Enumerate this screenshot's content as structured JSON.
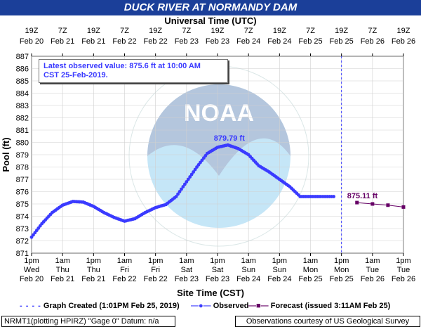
{
  "title": "DUCK RIVER AT NORMANDY DAM",
  "top_axis_title": "Universal Time (UTC)",
  "bottom_axis_title": "Site Time (CST)",
  "y_axis_title": "Pool (ft)",
  "latest_observed": {
    "line1": "Latest observed value: 875.6 ft at 10:00 AM",
    "line2": "CST 25-Feb-2019."
  },
  "legend": {
    "graph_created": "Graph Created (1:01PM Feb 25, 2019)",
    "observed": "Observed",
    "forecast": "Forecast (issued 3:11AM Feb 25)"
  },
  "footer": {
    "left": "NRMT1(plotting HPIRZ) \"Gage 0\" Datum: n/a",
    "right": "Observations courtesy of US Geological Survey"
  },
  "colors": {
    "title_bar": "#1b3f99",
    "observed": "#3a3aff",
    "forecast": "#660066",
    "graph_created_line": "#3a3aff",
    "grid": "#d0d0d0"
  },
  "watermark": "NOAA seal (NATIONAL OCEANIC AND ATMOSPHERIC ADMINISTRATION, U.S. DEPARTMENT OF COMMERCE)",
  "chart_data": {
    "type": "line",
    "title": "DUCK RIVER AT NORMANDY DAM",
    "xlabel": "Site Time (CST)",
    "ylabel": "Pool (ft)",
    "ylim": [
      871,
      887
    ],
    "xlim": [
      "Feb 20 1pm",
      "Feb 26 1pm"
    ],
    "x_unit": "hours CST",
    "y_ticks": [
      871,
      872,
      873,
      874,
      875,
      876,
      877,
      878,
      879,
      880,
      881,
      882,
      883,
      884,
      885,
      886,
      887
    ],
    "bottom_ticks": [
      {
        "time": "1pm",
        "day": "Wed",
        "date": "Feb 20"
      },
      {
        "time": "1am",
        "day": "Thu",
        "date": "Feb 21"
      },
      {
        "time": "1pm",
        "day": "Thu",
        "date": "Feb 21"
      },
      {
        "time": "1am",
        "day": "Fri",
        "date": "Feb 22"
      },
      {
        "time": "1pm",
        "day": "Fri",
        "date": "Feb 22"
      },
      {
        "time": "1am",
        "day": "Sat",
        "date": "Feb 23"
      },
      {
        "time": "1pm",
        "day": "Sat",
        "date": "Feb 23"
      },
      {
        "time": "1am",
        "day": "Sun",
        "date": "Feb 24"
      },
      {
        "time": "1pm",
        "day": "Sun",
        "date": "Feb 24"
      },
      {
        "time": "1am",
        "day": "Mon",
        "date": "Feb 25"
      },
      {
        "time": "1pm",
        "day": "Mon",
        "date": "Feb 25"
      },
      {
        "time": "1am",
        "day": "Tue",
        "date": "Feb 26"
      },
      {
        "time": "1pm",
        "day": "Tue",
        "date": "Feb 26"
      }
    ],
    "top_ticks": [
      {
        "time": "19Z",
        "date": "Feb 20"
      },
      {
        "time": "7Z",
        "date": "Feb 21"
      },
      {
        "time": "19Z",
        "date": "Feb 21"
      },
      {
        "time": "7Z",
        "date": "Feb 22"
      },
      {
        "time": "19Z",
        "date": "Feb 22"
      },
      {
        "time": "7Z",
        "date": "Feb 23"
      },
      {
        "time": "19Z",
        "date": "Feb 23"
      },
      {
        "time": "7Z",
        "date": "Feb 24"
      },
      {
        "time": "19Z",
        "date": "Feb 24"
      },
      {
        "time": "7Z",
        "date": "Feb 25"
      },
      {
        "time": "19Z",
        "date": "Feb 25"
      },
      {
        "time": "7Z",
        "date": "Feb 26"
      },
      {
        "time": "19Z",
        "date": "Feb 26"
      }
    ],
    "graph_created": "Feb 25 1:01pm",
    "series": [
      {
        "name": "Observed",
        "marker": "circle",
        "x": [
          "Feb 20 1pm",
          "Feb 20 5pm",
          "Feb 20 9pm",
          "Feb 21 1am",
          "Feb 21 5am",
          "Feb 21 9am",
          "Feb 21 1pm",
          "Feb 21 5pm",
          "Feb 21 9pm",
          "Feb 22 1am",
          "Feb 22 5am",
          "Feb 22 9am",
          "Feb 22 1pm",
          "Feb 22 5pm",
          "Feb 22 9pm",
          "Feb 23 1am",
          "Feb 23 5am",
          "Feb 23 9am",
          "Feb 23 1pm",
          "Feb 23 5pm",
          "Feb 23 9pm",
          "Feb 24 1am",
          "Feb 24 5am",
          "Feb 24 9am",
          "Feb 24 1pm",
          "Feb 24 5pm",
          "Feb 24 9pm",
          "Feb 25 1am",
          "Feb 25 5am",
          "Feb 25 10am"
        ],
        "y": [
          872.3,
          873.4,
          874.3,
          874.9,
          875.2,
          875.15,
          874.8,
          874.3,
          873.9,
          873.6,
          873.8,
          874.3,
          874.7,
          874.95,
          875.6,
          876.8,
          878.0,
          879.1,
          879.6,
          879.79,
          879.5,
          879.0,
          878.1,
          877.6,
          877.0,
          876.4,
          875.6,
          875.6,
          875.6,
          875.6
        ],
        "peak_label": "879.79 ft"
      },
      {
        "name": "Forecast (issued 3:11AM Feb 25)",
        "marker": "square",
        "x": [
          "Feb 25 7pm",
          "Feb 26 1am",
          "Feb 26 7am",
          "Feb 26 1pm"
        ],
        "y": [
          875.11,
          875.0,
          874.9,
          874.75
        ],
        "label": "875.11 ft"
      }
    ]
  }
}
